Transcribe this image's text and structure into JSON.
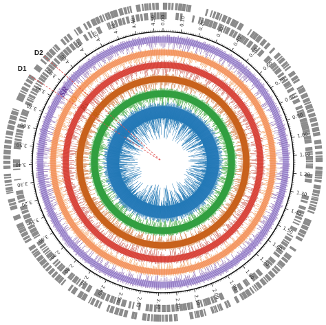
{
  "markers": {
    "d1": {
      "label": "D1",
      "position_mb": 3.83
    },
    "d2": {
      "label": "D2",
      "position_mb": 3.94
    }
  },
  "scale": {
    "genome_length_mb": 4.55,
    "tick_labels": [
      "0.00",
      "0.10",
      "0.20",
      "0.30",
      "0.40",
      "0.50",
      "0.60",
      "0.70",
      "0.80",
      "0.90",
      "1.00",
      "1.10",
      "1.20",
      "1.30",
      "1.40",
      "1.50",
      "1.60",
      "1.70",
      "1.80",
      "1.90",
      "2.00",
      "2.10",
      "2.20",
      "2.30",
      "2.40",
      "2.50",
      "2.60",
      "2.70",
      "2.80",
      "2.90",
      "3.00",
      "3.10",
      "3.20",
      "3.30",
      "3.40",
      "3.50",
      "3.60",
      "3.70",
      "3.80",
      "3.90",
      "4.00",
      "4.10",
      "4.20",
      "4.30",
      "4.40",
      "4.50"
    ]
  },
  "tracks": [
    {
      "id": "sr",
      "label": "SR",
      "color": "#6a3d9a",
      "fill": "#b7aee6"
    },
    {
      "id": "o",
      "label": "O",
      "color": "#f08a3c",
      "fill": "#f59a72"
    },
    {
      "id": "rs",
      "label": "Rs",
      "color": "#c0392b",
      "fill": "#e8413a"
    },
    {
      "id": "r",
      "label": "R",
      "color": "#c55a11",
      "fill": "#c55a11"
    },
    {
      "id": "f",
      "label": "F",
      "color": "#2ca02c",
      "fill": "#25944a"
    },
    {
      "id": "w",
      "label": "W",
      "color": "#1f77b4",
      "fill": "#2b7bc0"
    }
  ]
}
